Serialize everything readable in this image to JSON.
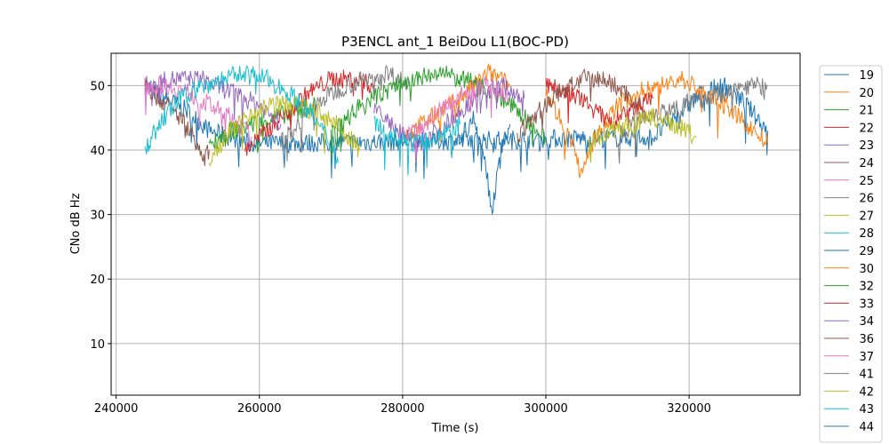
{
  "chart_data": {
    "type": "line",
    "title": "P3ENCL ant_1 BeiDou L1(BOC-PD)",
    "xlabel": "Time (s)",
    "ylabel": "CNo dB Hz",
    "xlim": [
      239300,
      335500
    ],
    "ylim": [
      2,
      55
    ],
    "xticks": [
      240000,
      260000,
      280000,
      300000,
      320000
    ],
    "xtick_labels": [
      "240000",
      "260000",
      "280000",
      "300000",
      "320000"
    ],
    "yticks": [
      10,
      20,
      30,
      40,
      50
    ],
    "ytick_labels": [
      "10",
      "20",
      "30",
      "40",
      "50"
    ],
    "grid": true,
    "legend_position": "right-outside",
    "series": [
      {
        "name": "19",
        "color": "#1f77b4",
        "x": [
          244000,
          247000,
          250000,
          253000,
          256000,
          259000,
          262000,
          315000,
          319000,
          322000,
          325000,
          328000,
          331000
        ],
        "y": [
          50,
          48,
          46,
          43,
          42,
          41,
          41,
          42,
          46,
          49,
          50,
          47,
          43
        ]
      },
      {
        "name": "20",
        "color": "#ff7f0e",
        "x": [
          280000,
          284000,
          288000,
          290000,
          292000,
          295000
        ],
        "y": [
          42,
          45,
          48,
          50,
          52,
          50
        ]
      },
      {
        "name": "21",
        "color": "#2ca02c",
        "x": [
          253000,
          256000,
          259000,
          262000,
          265000,
          268000
        ],
        "y": [
          41,
          43,
          44,
          45,
          46,
          47
        ]
      },
      {
        "name": "22",
        "color": "#d62728",
        "x": [
          258000,
          261000,
          264000,
          267000,
          270000,
          273000,
          276000
        ],
        "y": [
          40,
          43,
          46,
          49,
          51,
          51,
          50
        ]
      },
      {
        "name": "23",
        "color": "#9467bd",
        "x": [
          244000,
          248000,
          252000,
          256000,
          260000,
          263000
        ],
        "y": [
          50,
          51,
          51,
          49,
          47,
          44
        ]
      },
      {
        "name": "24",
        "color": "#8c564b",
        "x": [
          244000,
          247000,
          249000,
          251000,
          252000,
          253000
        ],
        "y": [
          50,
          47,
          45,
          42,
          38,
          40
        ]
      },
      {
        "name": "25",
        "color": "#e377c2",
        "x": [
          244000,
          247000,
          250000,
          253000,
          256000,
          259000
        ],
        "y": [
          50,
          50,
          49,
          47,
          45,
          42
        ]
      },
      {
        "name": "26",
        "color": "#7f7f7f",
        "x": [
          263000,
          266000,
          269000,
          272000,
          275000,
          278000,
          281000
        ],
        "y": [
          41,
          45,
          48,
          50,
          51,
          52,
          50
        ]
      },
      {
        "name": "27",
        "color": "#bcbd22",
        "x": [
          253000,
          256000,
          259000,
          262000,
          265000,
          268000,
          271000,
          274000
        ],
        "y": [
          39,
          43,
          46,
          47,
          47,
          46,
          44,
          40
        ]
      },
      {
        "name": "28",
        "color": "#17becf",
        "x": [
          244000,
          246000,
          249000,
          252000,
          255000,
          258000,
          261000,
          264000,
          267000,
          270000,
          271000
        ],
        "y": [
          40,
          44,
          48,
          50,
          51,
          52,
          51,
          49,
          46,
          41,
          38
        ]
      },
      {
        "name": "29",
        "color": "#1f77b4",
        "x": [
          288000,
          290000,
          291500,
          292500,
          293500,
          295000
        ],
        "y": [
          42,
          45,
          38,
          30,
          40,
          44
        ]
      },
      {
        "name": "30",
        "color": "#ff7f0e",
        "x": [
          300000,
          302000,
          304000,
          305000,
          307000,
          310000,
          313000,
          316000,
          319000,
          322000,
          325000,
          328000,
          331000
        ],
        "y": [
          49,
          45,
          40,
          36,
          42,
          47,
          49,
          50,
          51,
          49,
          47,
          44,
          41
        ]
      },
      {
        "name": "32",
        "color": "#2ca02c",
        "x": [
          270000,
          273000,
          276000,
          279000,
          282000,
          285000,
          288000,
          291000,
          294000,
          297000,
          300000
        ],
        "y": [
          42,
          46,
          48,
          50,
          51,
          52,
          51,
          50,
          48,
          45,
          42
        ]
      },
      {
        "name": "33",
        "color": "#d62728",
        "x": [
          300000,
          303000,
          306000,
          309000,
          312000,
          315000
        ],
        "y": [
          50,
          49,
          47,
          44,
          46,
          48
        ]
      },
      {
        "name": "34",
        "color": "#9467bd",
        "x": [
          276000,
          279000,
          282000,
          285000,
          288000,
          291000,
          294000,
          297000
        ],
        "y": [
          47,
          43,
          41,
          43,
          46,
          49,
          50,
          48
        ]
      },
      {
        "name": "36",
        "color": "#8c564b",
        "x": [
          296000,
          299000,
          302000,
          305000,
          308000,
          311000,
          314000
        ],
        "y": [
          42,
          46,
          49,
          51,
          51,
          49,
          46
        ]
      },
      {
        "name": "37",
        "color": "#e377c2",
        "x": [
          280000,
          283000,
          286000,
          289000,
          292000,
          295000
        ],
        "y": [
          42,
          44,
          47,
          49,
          50,
          48
        ]
      },
      {
        "name": "41",
        "color": "#7f7f7f",
        "x": [
          310000,
          313000,
          316000,
          319000,
          322000,
          325000,
          328000,
          331000
        ],
        "y": [
          42,
          45,
          46,
          47,
          48,
          49,
          50,
          50
        ]
      },
      {
        "name": "42",
        "color": "#bcbd22",
        "x": [
          306000,
          309000,
          312000,
          315000,
          318000,
          321000
        ],
        "y": [
          41,
          43,
          44,
          45,
          44,
          42
        ]
      },
      {
        "name": "43",
        "color": "#17becf",
        "x": [
          276000,
          279000,
          282000,
          285000,
          288000
        ],
        "y": [
          44,
          42,
          41,
          42,
          44
        ]
      },
      {
        "name": "44",
        "color": "#1f77b4",
        "x": [],
        "y": []
      }
    ]
  }
}
